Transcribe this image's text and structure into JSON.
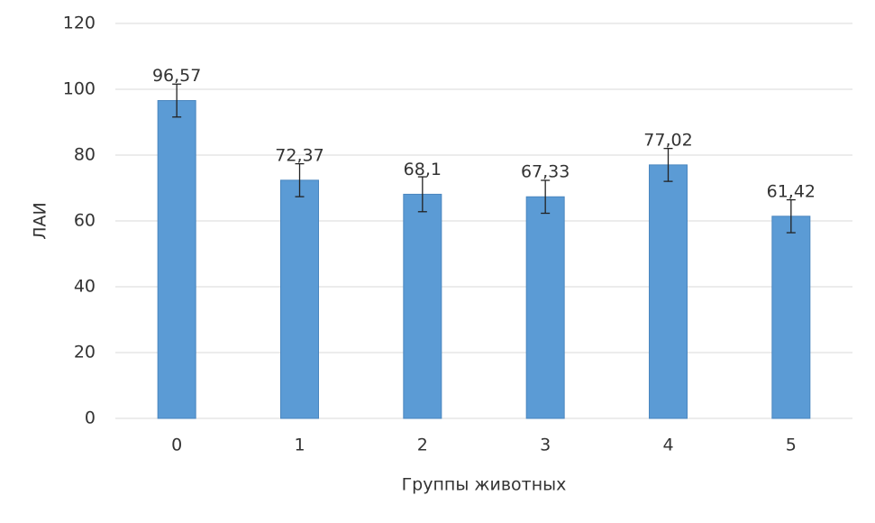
{
  "chart_data": {
    "type": "bar",
    "x_label": "Группы животных",
    "y_label": "ЛАИ",
    "categories": [
      "0",
      "1",
      "2",
      "3",
      "4",
      "5"
    ],
    "values": [
      96.57,
      72.37,
      68.1,
      67.33,
      77.02,
      61.42
    ],
    "value_labels": [
      "96,57",
      "72,37",
      "68,1",
      "67,33",
      "77,02",
      "61,42"
    ],
    "errors": [
      5,
      5,
      5.3,
      5,
      5,
      5
    ],
    "color": "#5b9bd5",
    "ylim": [
      0,
      120
    ],
    "yticks": [
      0,
      20,
      40,
      60,
      80,
      100,
      120
    ],
    "grid": true
  }
}
